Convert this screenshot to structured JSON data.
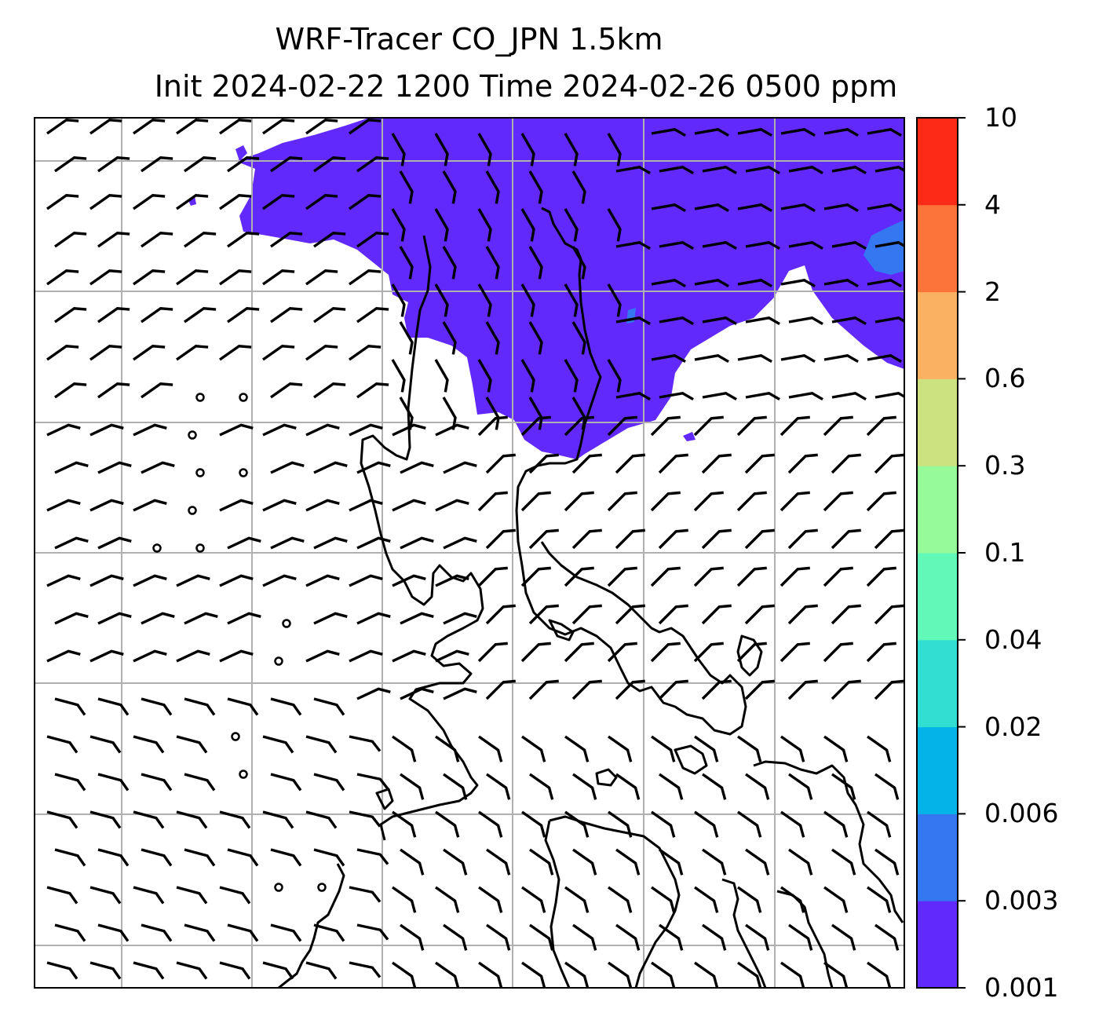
{
  "title": {
    "line1": "WRF-Tracer CO_JPN 1.5km",
    "line2": "Init 2024-02-22 1200 Time 2024-02-26 0500 ppm"
  },
  "colorbar": {
    "levels": [
      "0.001",
      "0.003",
      "0.006",
      "0.02",
      "0.04",
      "0.1",
      "0.3",
      "0.6",
      "2",
      "4",
      "10"
    ],
    "colors": [
      "#6129fc",
      "#3477f0",
      "#04b4e9",
      "#30dfd2",
      "#62f8b8",
      "#95fa97",
      "#cce280",
      "#fbb162",
      "#fd743b",
      "#fd2a18"
    ]
  },
  "map": {
    "plume_color": "#6129fc",
    "plume_secondary_color": "#3477f0",
    "grid_color": "#b0b0b0",
    "coast_color": "#000000",
    "wind_barbs": "shown",
    "gridlines": "shown"
  }
}
